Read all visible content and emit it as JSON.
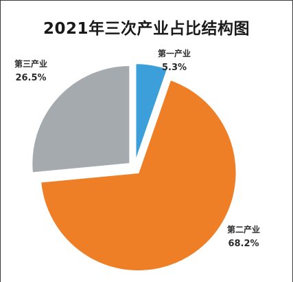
{
  "chart_data": {
    "type": "pie",
    "title": "2021年三次产业占比结构图",
    "categories": [
      "第一产业",
      "第二产业",
      "第三产业"
    ],
    "values": [
      5.3,
      68.2,
      26.5
    ],
    "value_labels": [
      "5.3%",
      "68.2%",
      "26.5%"
    ],
    "colors": [
      "#3d9fd9",
      "#ef7f26",
      "#a4aaae"
    ],
    "exploded": true,
    "legend": "none"
  }
}
